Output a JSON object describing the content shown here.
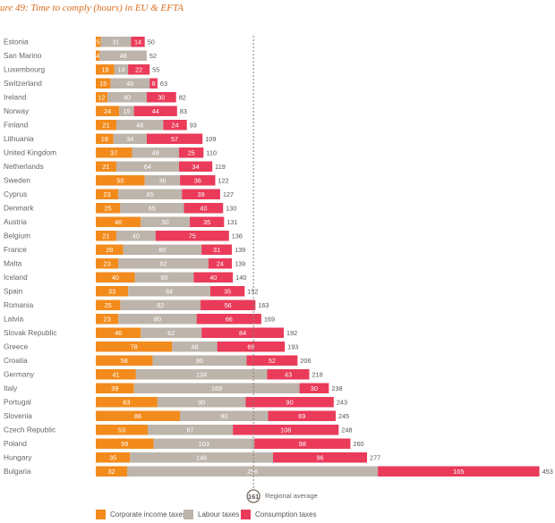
{
  "title": "ure 49: Time to comply (hours) in EU & EFTA",
  "chart_data": {
    "type": "bar",
    "stacked": true,
    "orientation": "horizontal",
    "title": "ure 49: Time to comply (hours) in EU & EFTA",
    "categories": [
      "Estonia",
      "San Marino",
      "Luxembourg",
      "Switzerland",
      "Ireland",
      "Norway",
      "Finland",
      "Lithuania",
      "United Kingdom",
      "Netherlands",
      "Sweden",
      "Cyprus",
      "Denmark",
      "Austria",
      "Belgium",
      "France",
      "Malta",
      "Iceland",
      "Spain",
      "Romania",
      "Latvia",
      "Slovak Republic",
      "Greece",
      "Croatia",
      "Germany",
      "Italy",
      "Portugal",
      "Slovenia",
      "Czech Republic",
      "Poland",
      "Hungary",
      "Bulgaria"
    ],
    "series": [
      {
        "name": "Corporate income taxes",
        "color": "#f28b1c",
        "values": [
          5,
          4,
          19,
          15,
          12,
          24,
          21,
          18,
          37,
          21,
          50,
          23,
          25,
          46,
          21,
          28,
          23,
          40,
          33,
          25,
          23,
          46,
          78,
          58,
          41,
          39,
          63,
          86,
          53,
          59,
          35,
          32
        ]
      },
      {
        "name": "Labour taxes",
        "color": "#bdb4ab",
        "values": [
          31,
          48,
          14,
          40,
          40,
          15,
          48,
          34,
          48,
          64,
          36,
          65,
          65,
          50,
          40,
          80,
          92,
          60,
          84,
          82,
          80,
          62,
          46,
          96,
          134,
          169,
          90,
          90,
          87,
          103,
          146,
          256
        ]
      },
      {
        "name": "Consumption taxes",
        "color": "#ea3b5a",
        "values": [
          14,
          0,
          22,
          8,
          30,
          44,
          24,
          57,
          25,
          34,
          36,
          39,
          40,
          35,
          75,
          31,
          24,
          40,
          35,
          56,
          66,
          84,
          69,
          52,
          43,
          30,
          90,
          69,
          108,
          98,
          96,
          165
        ]
      }
    ],
    "totals": [
      50,
      52,
      55,
      63,
      82,
      83,
      93,
      109,
      110,
      119,
      122,
      127,
      130,
      131,
      136,
      139,
      139,
      140,
      152,
      163,
      169,
      192,
      193,
      206,
      218,
      238,
      243,
      245,
      248,
      260,
      277,
      453
    ],
    "reference_line": {
      "value": 161,
      "label": "Regional average"
    },
    "xlim": [
      0,
      480
    ],
    "legend_position": "bottom"
  },
  "legend": [
    {
      "label": "Corporate income taxes",
      "color": "#f28b1c"
    },
    {
      "label": "Labour taxes",
      "color": "#bdb4ab"
    },
    {
      "label": "Consumption taxes",
      "color": "#ea3b5a"
    }
  ],
  "reference": {
    "value": "161",
    "label": "Regional average"
  }
}
